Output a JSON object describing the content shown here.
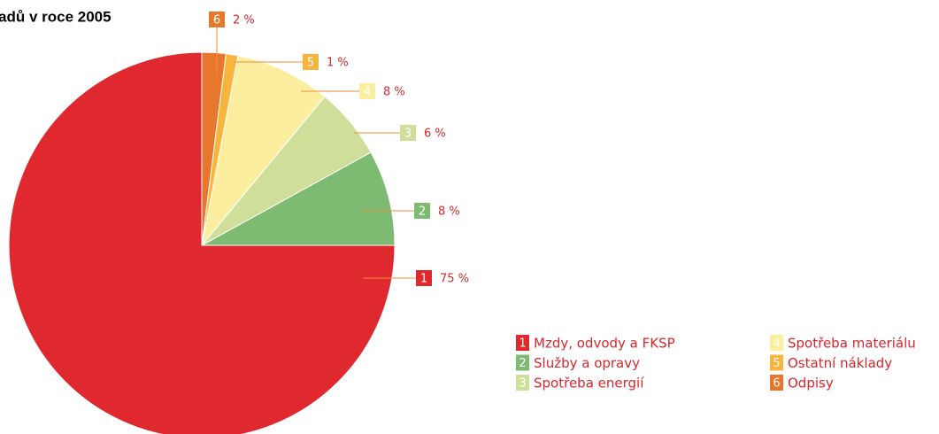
{
  "chart_data": {
    "type": "pie",
    "title": "adů v roce 2005",
    "categories": [
      "Mzdy, odvody a FKSP",
      "Služby a opravy",
      "Spotřeba energií",
      "Spotřeba materiálu",
      "Ostatní náklady",
      "Odpisy"
    ],
    "markers": [
      "1",
      "2",
      "3",
      "4",
      "5",
      "6"
    ],
    "values": [
      75,
      8,
      6,
      8,
      1,
      2
    ],
    "value_labels": [
      "75 %",
      "8 %",
      "6 %",
      "8 %",
      "1 %",
      "2 %"
    ],
    "colors": [
      "#e0292e",
      "#7dba72",
      "#cfdf99",
      "#fbef9f",
      "#f8b53c",
      "#e8772e"
    ]
  }
}
